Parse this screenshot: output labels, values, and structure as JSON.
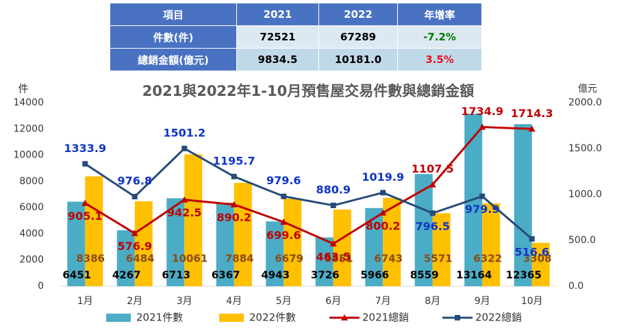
{
  "table": {
    "header": [
      "項目",
      "2021",
      "2022",
      "年增率"
    ],
    "rows": [
      [
        "件數(件)",
        "72521",
        "67289",
        "-7.2%"
      ],
      [
        "總銷金額(億元)",
        "9834.5",
        "10181.0",
        "3.5%"
      ]
    ],
    "rate_colors": [
      "#007a00",
      "#e8101c"
    ]
  },
  "chart_data": {
    "type": "bar-line",
    "title": "2021與2022年1-10月預售屋交易件數與總銷金額",
    "y_label": "件",
    "y2_label": "億元",
    "categories": [
      "1月",
      "2月",
      "3月",
      "4月",
      "5月",
      "6月",
      "7月",
      "8月",
      "9月",
      "10月"
    ],
    "ylim": [
      0,
      14000
    ],
    "yticks": [
      0,
      2000,
      4000,
      6000,
      8000,
      10000,
      12000,
      14000
    ],
    "y2lim": [
      0,
      2000
    ],
    "y2ticks": [
      {
        "value": 0,
        "label": "0.0"
      },
      {
        "value": 500,
        "label": "500.0"
      },
      {
        "value": 1000,
        "label": "1000.0"
      },
      {
        "value": 1500,
        "label": "1500.0"
      },
      {
        "value": 2000,
        "label": "2000.0"
      }
    ],
    "series": [
      {
        "name": "2021件數",
        "type": "bar",
        "color": "#4bacc6",
        "label_color": "#000000",
        "values": [
          6451,
          4267,
          6713,
          6367,
          4943,
          3726,
          5966,
          8559,
          13164,
          12365
        ]
      },
      {
        "name": "2022件數",
        "type": "bar",
        "color": "#ffc000",
        "label_color": "#8a4b16",
        "values": [
          8386,
          6484,
          10061,
          7884,
          6679,
          5851,
          6743,
          5571,
          6322,
          3308
        ]
      },
      {
        "name": "2021總銷",
        "type": "line",
        "axis": "y2",
        "marker": "triangle",
        "color": "#c00000",
        "values": [
          905.1,
          576.9,
          942.5,
          890.2,
          699.6,
          463.5,
          800.2,
          1107.5,
          1734.9,
          1714.3
        ]
      },
      {
        "name": "2022總銷",
        "type": "line",
        "axis": "y2",
        "marker": "square",
        "color": "#264b7a",
        "label_color": "#1034c8",
        "values": [
          1333.9,
          976.8,
          1501.2,
          1195.7,
          979.6,
          880.9,
          1019.9,
          796.5,
          979.9,
          516.6
        ]
      }
    ]
  }
}
